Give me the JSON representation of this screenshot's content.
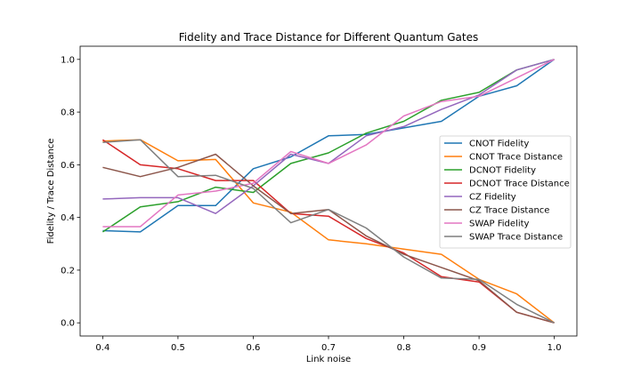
{
  "chart_data": {
    "type": "line",
    "title": "Fidelity and Trace Distance for Different Quantum Gates",
    "xlabel": "Link noise",
    "ylabel": "Fidelity / Trace Distance",
    "xlim": [
      0.37,
      1.03
    ],
    "ylim": [
      -0.05,
      1.05
    ],
    "xticks": [
      "0.4",
      "0.5",
      "0.6",
      "0.7",
      "0.8",
      "0.9",
      "1.0"
    ],
    "yticks": [
      "0.0",
      "0.2",
      "0.4",
      "0.6",
      "0.8",
      "1.0"
    ],
    "grid": false,
    "legend_position": "center-right",
    "x": [
      0.4,
      0.45,
      0.5,
      0.55,
      0.6,
      0.65,
      0.7,
      0.75,
      0.8,
      0.85,
      0.9,
      0.95,
      1.0
    ],
    "series": [
      {
        "name": "CNOT Fidelity",
        "color": "#1f77b4",
        "values": [
          0.35,
          0.345,
          0.445,
          0.445,
          0.585,
          0.63,
          0.71,
          0.715,
          0.74,
          0.765,
          0.86,
          0.9,
          1.0
        ]
      },
      {
        "name": "CNOT Trace Distance",
        "color": "#ff7f0e",
        "values": [
          0.69,
          0.695,
          0.615,
          0.62,
          0.455,
          0.42,
          0.315,
          0.3,
          0.28,
          0.26,
          0.165,
          0.11,
          0.0
        ]
      },
      {
        "name": "DCNOT Fidelity",
        "color": "#2ca02c",
        "values": [
          0.345,
          0.44,
          0.46,
          0.515,
          0.495,
          0.605,
          0.645,
          0.72,
          0.765,
          0.845,
          0.875,
          0.96,
          1.0
        ]
      },
      {
        "name": "DCNOT Trace Distance",
        "color": "#d62728",
        "values": [
          0.695,
          0.6,
          0.585,
          0.54,
          0.54,
          0.415,
          0.405,
          0.32,
          0.265,
          0.175,
          0.155,
          0.04,
          0.0
        ]
      },
      {
        "name": "CZ Fidelity",
        "color": "#9467bd",
        "values": [
          0.47,
          0.475,
          0.475,
          0.415,
          0.52,
          0.64,
          0.605,
          0.71,
          0.745,
          0.81,
          0.865,
          0.96,
          1.0
        ]
      },
      {
        "name": "CZ Trace Distance",
        "color": "#8c564b",
        "values": [
          0.59,
          0.555,
          0.59,
          0.64,
          0.52,
          0.415,
          0.43,
          0.33,
          0.26,
          0.21,
          0.16,
          0.04,
          0.0
        ]
      },
      {
        "name": "SWAP Fidelity",
        "color": "#e377c2",
        "values": [
          0.365,
          0.365,
          0.485,
          0.5,
          0.53,
          0.65,
          0.605,
          0.675,
          0.785,
          0.84,
          0.86,
          0.93,
          1.0
        ]
      },
      {
        "name": "SWAP Trace Distance",
        "color": "#7f7f7f",
        "values": [
          0.685,
          0.695,
          0.555,
          0.56,
          0.51,
          0.38,
          0.43,
          0.36,
          0.25,
          0.17,
          0.165,
          0.07,
          0.0
        ]
      }
    ]
  }
}
